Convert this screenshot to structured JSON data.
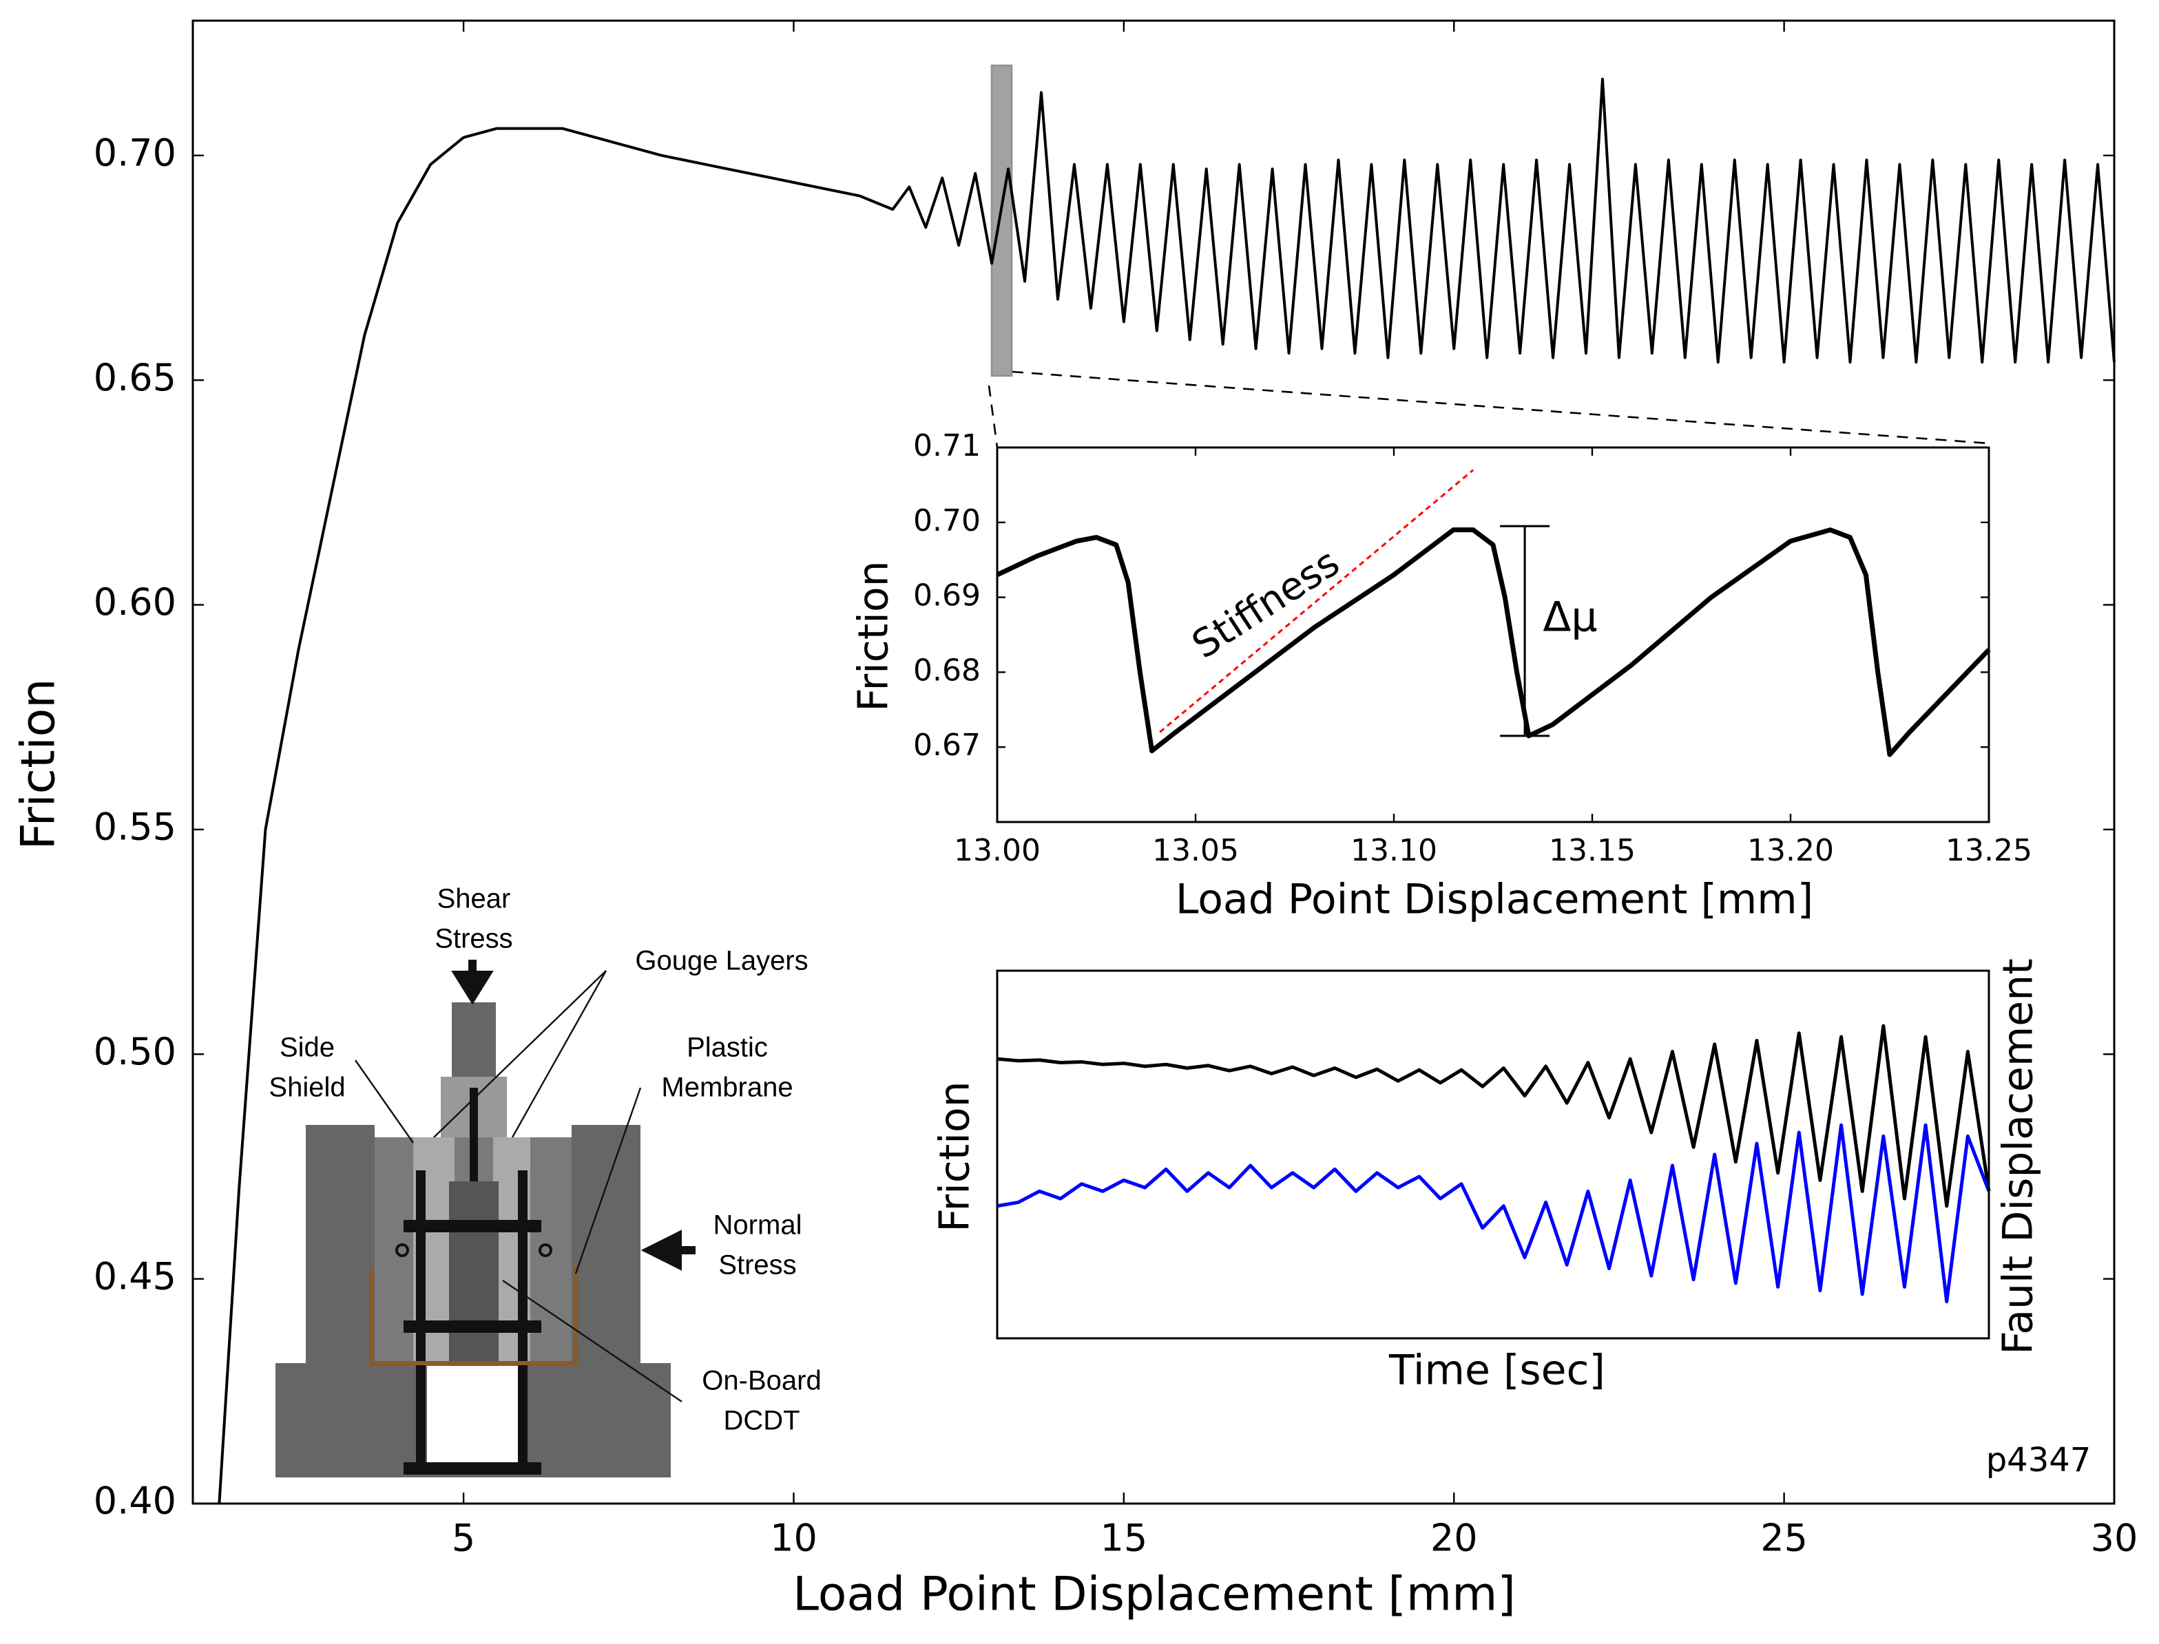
{
  "chart_data": [
    {
      "type": "line",
      "xlabel": "Load Point Displacement [mm]",
      "ylabel": "Friction",
      "annotation": "p4347",
      "color": "#000000",
      "xlim": [
        0.9,
        30
      ],
      "ylim": [
        0.4,
        0.73
      ],
      "xticks": [
        5,
        10,
        15,
        20,
        25,
        30
      ],
      "yticks": [
        {
          "value": 0.4,
          "label": "0.40"
        },
        0.45,
        {
          "value": 0.5,
          "label": "0.50"
        },
        0.55,
        {
          "value": 0.6,
          "label": "0.60"
        },
        0.65,
        {
          "value": 0.7,
          "label": "0.70"
        }
      ],
      "highlight": {
        "xlim": [
          13.0,
          13.3
        ],
        "ylim": [
          0.651,
          0.72
        ]
      },
      "x": [
        1.3,
        1.6,
        2.0,
        2.5,
        3.0,
        3.5,
        4.0,
        4.5,
        5.0,
        5.5,
        6.0,
        6.5,
        7.0,
        8.0,
        9.0,
        10.0,
        11.0,
        11.5,
        11.75,
        12.0,
        12.25,
        12.5,
        12.75,
        13.0,
        13.25,
        13.5,
        13.75,
        14.0,
        14.25,
        14.5,
        14.75,
        15.0,
        15.25,
        15.5,
        15.75,
        16.0,
        16.25,
        16.5,
        16.75,
        17.0,
        17.25,
        17.5,
        17.75,
        18.0,
        18.25,
        18.5,
        18.75,
        19.0,
        19.25,
        19.5,
        19.75,
        20.0,
        20.25,
        20.5,
        20.75,
        21.0,
        21.25,
        21.5,
        21.75,
        22.0,
        22.25,
        22.5,
        22.75,
        23.0,
        23.25,
        23.5,
        23.75,
        24.0,
        24.25,
        24.5,
        24.75,
        25.0,
        25.25,
        25.5,
        25.75,
        26.0,
        26.25,
        26.5,
        26.75,
        27.0,
        27.25,
        27.5,
        27.75,
        28.0,
        28.25,
        28.5,
        28.75,
        29.0,
        29.25,
        29.5,
        29.75,
        30.0
      ],
      "values": [
        0.4,
        0.47,
        0.55,
        0.59,
        0.625,
        0.66,
        0.685,
        0.698,
        0.704,
        0.706,
        0.706,
        0.706,
        0.704,
        0.7,
        0.697,
        0.694,
        0.691,
        0.688,
        0.693,
        0.684,
        0.695,
        0.68,
        0.696,
        0.676,
        0.697,
        0.672,
        0.714,
        0.668,
        0.698,
        0.666,
        0.698,
        0.663,
        0.698,
        0.661,
        0.698,
        0.659,
        0.697,
        0.658,
        0.698,
        0.657,
        0.697,
        0.656,
        0.698,
        0.657,
        0.699,
        0.656,
        0.698,
        0.655,
        0.699,
        0.656,
        0.698,
        0.657,
        0.699,
        0.655,
        0.698,
        0.656,
        0.699,
        0.655,
        0.698,
        0.656,
        0.717,
        0.655,
        0.698,
        0.656,
        0.699,
        0.655,
        0.698,
        0.654,
        0.699,
        0.655,
        0.698,
        0.654,
        0.699,
        0.655,
        0.698,
        0.654,
        0.699,
        0.655,
        0.698,
        0.654,
        0.699,
        0.655,
        0.698,
        0.654,
        0.699,
        0.654,
        0.698,
        0.654,
        0.699,
        0.655,
        0.698,
        0.654
      ]
    },
    {
      "type": "line",
      "xlabel": "Load Point Displacement [mm]",
      "ylabel": "Friction",
      "color": "#000000",
      "xlim": [
        13.0,
        13.25
      ],
      "ylim": [
        0.66,
        0.71
      ],
      "xticks": [
        {
          "value": 13.0,
          "label": "13.00"
        },
        13.05,
        {
          "value": 13.1,
          "label": "13.10"
        },
        13.15,
        {
          "value": 13.2,
          "label": "13.20"
        },
        13.25
      ],
      "yticks": [
        0.67,
        0.68,
        0.69,
        {
          "value": 0.7,
          "label": "0.70"
        },
        0.71
      ],
      "x": [
        13.0,
        13.01,
        13.02,
        13.025,
        13.03,
        13.033,
        13.036,
        13.039,
        13.045,
        13.06,
        13.08,
        13.1,
        13.115,
        13.12,
        13.125,
        13.128,
        13.131,
        13.134,
        13.14,
        13.16,
        13.18,
        13.2,
        13.21,
        13.215,
        13.219,
        13.222,
        13.225,
        13.23,
        13.25
      ],
      "values": [
        0.693,
        0.6955,
        0.6975,
        0.698,
        0.697,
        0.692,
        0.68,
        0.6695,
        0.672,
        0.678,
        0.686,
        0.693,
        0.699,
        0.699,
        0.697,
        0.69,
        0.68,
        0.6715,
        0.673,
        0.681,
        0.69,
        0.6975,
        0.699,
        0.698,
        0.693,
        0.68,
        0.669,
        0.672,
        0.683
      ],
      "stiffness_label": "Stiffness",
      "stiffness_line": {
        "color": "#ff0000",
        "x": [
          13.041,
          13.12
        ],
        "y": [
          0.672,
          0.707
        ]
      },
      "delta_mu_label": "Δμ",
      "delta_mu": {
        "x": 13.133,
        "y": [
          0.6715,
          0.6995
        ]
      }
    },
    {
      "type": "line",
      "xlabel": "Time [sec]",
      "ylabel": "Friction",
      "y2label": "Fault Displacement",
      "ylim": [
        0,
        1
      ],
      "y2lim": [
        0,
        1
      ],
      "series": [
        {
          "color": "#000000",
          "values": [
            0.76,
            0.755,
            0.757,
            0.75,
            0.752,
            0.745,
            0.748,
            0.74,
            0.745,
            0.735,
            0.742,
            0.728,
            0.74,
            0.72,
            0.738,
            0.715,
            0.735,
            0.71,
            0.732,
            0.7,
            0.73,
            0.695,
            0.73,
            0.685,
            0.735,
            0.66,
            0.74,
            0.64,
            0.75,
            0.6,
            0.76,
            0.56,
            0.78,
            0.52,
            0.8,
            0.48,
            0.81,
            0.45,
            0.83,
            0.43,
            0.82,
            0.4,
            0.85,
            0.38,
            0.82,
            0.36,
            0.78,
            0.4
          ]
        },
        {
          "color": "#0000ff",
          "axis": "y2",
          "values": [
            0.36,
            0.37,
            0.4,
            0.38,
            0.42,
            0.4,
            0.43,
            0.41,
            0.46,
            0.4,
            0.45,
            0.41,
            0.47,
            0.41,
            0.45,
            0.41,
            0.46,
            0.4,
            0.45,
            0.41,
            0.44,
            0.38,
            0.42,
            0.3,
            0.36,
            0.22,
            0.37,
            0.2,
            0.4,
            0.19,
            0.43,
            0.17,
            0.47,
            0.16,
            0.5,
            0.15,
            0.53,
            0.14,
            0.56,
            0.13,
            0.58,
            0.12,
            0.55,
            0.14,
            0.58,
            0.1,
            0.55,
            0.4
          ]
        }
      ]
    }
  ],
  "schematic": {
    "shear_stress": [
      "Shear",
      "Stress"
    ],
    "gouge_layers": "Gouge Layers",
    "side_shield": [
      "Side",
      "Shield"
    ],
    "plastic_membrane": [
      "Plastic",
      "Membrane"
    ],
    "normal_stress": [
      "Normal",
      "Stress"
    ],
    "dcdt": [
      "On-Board",
      "DCDT"
    ]
  }
}
